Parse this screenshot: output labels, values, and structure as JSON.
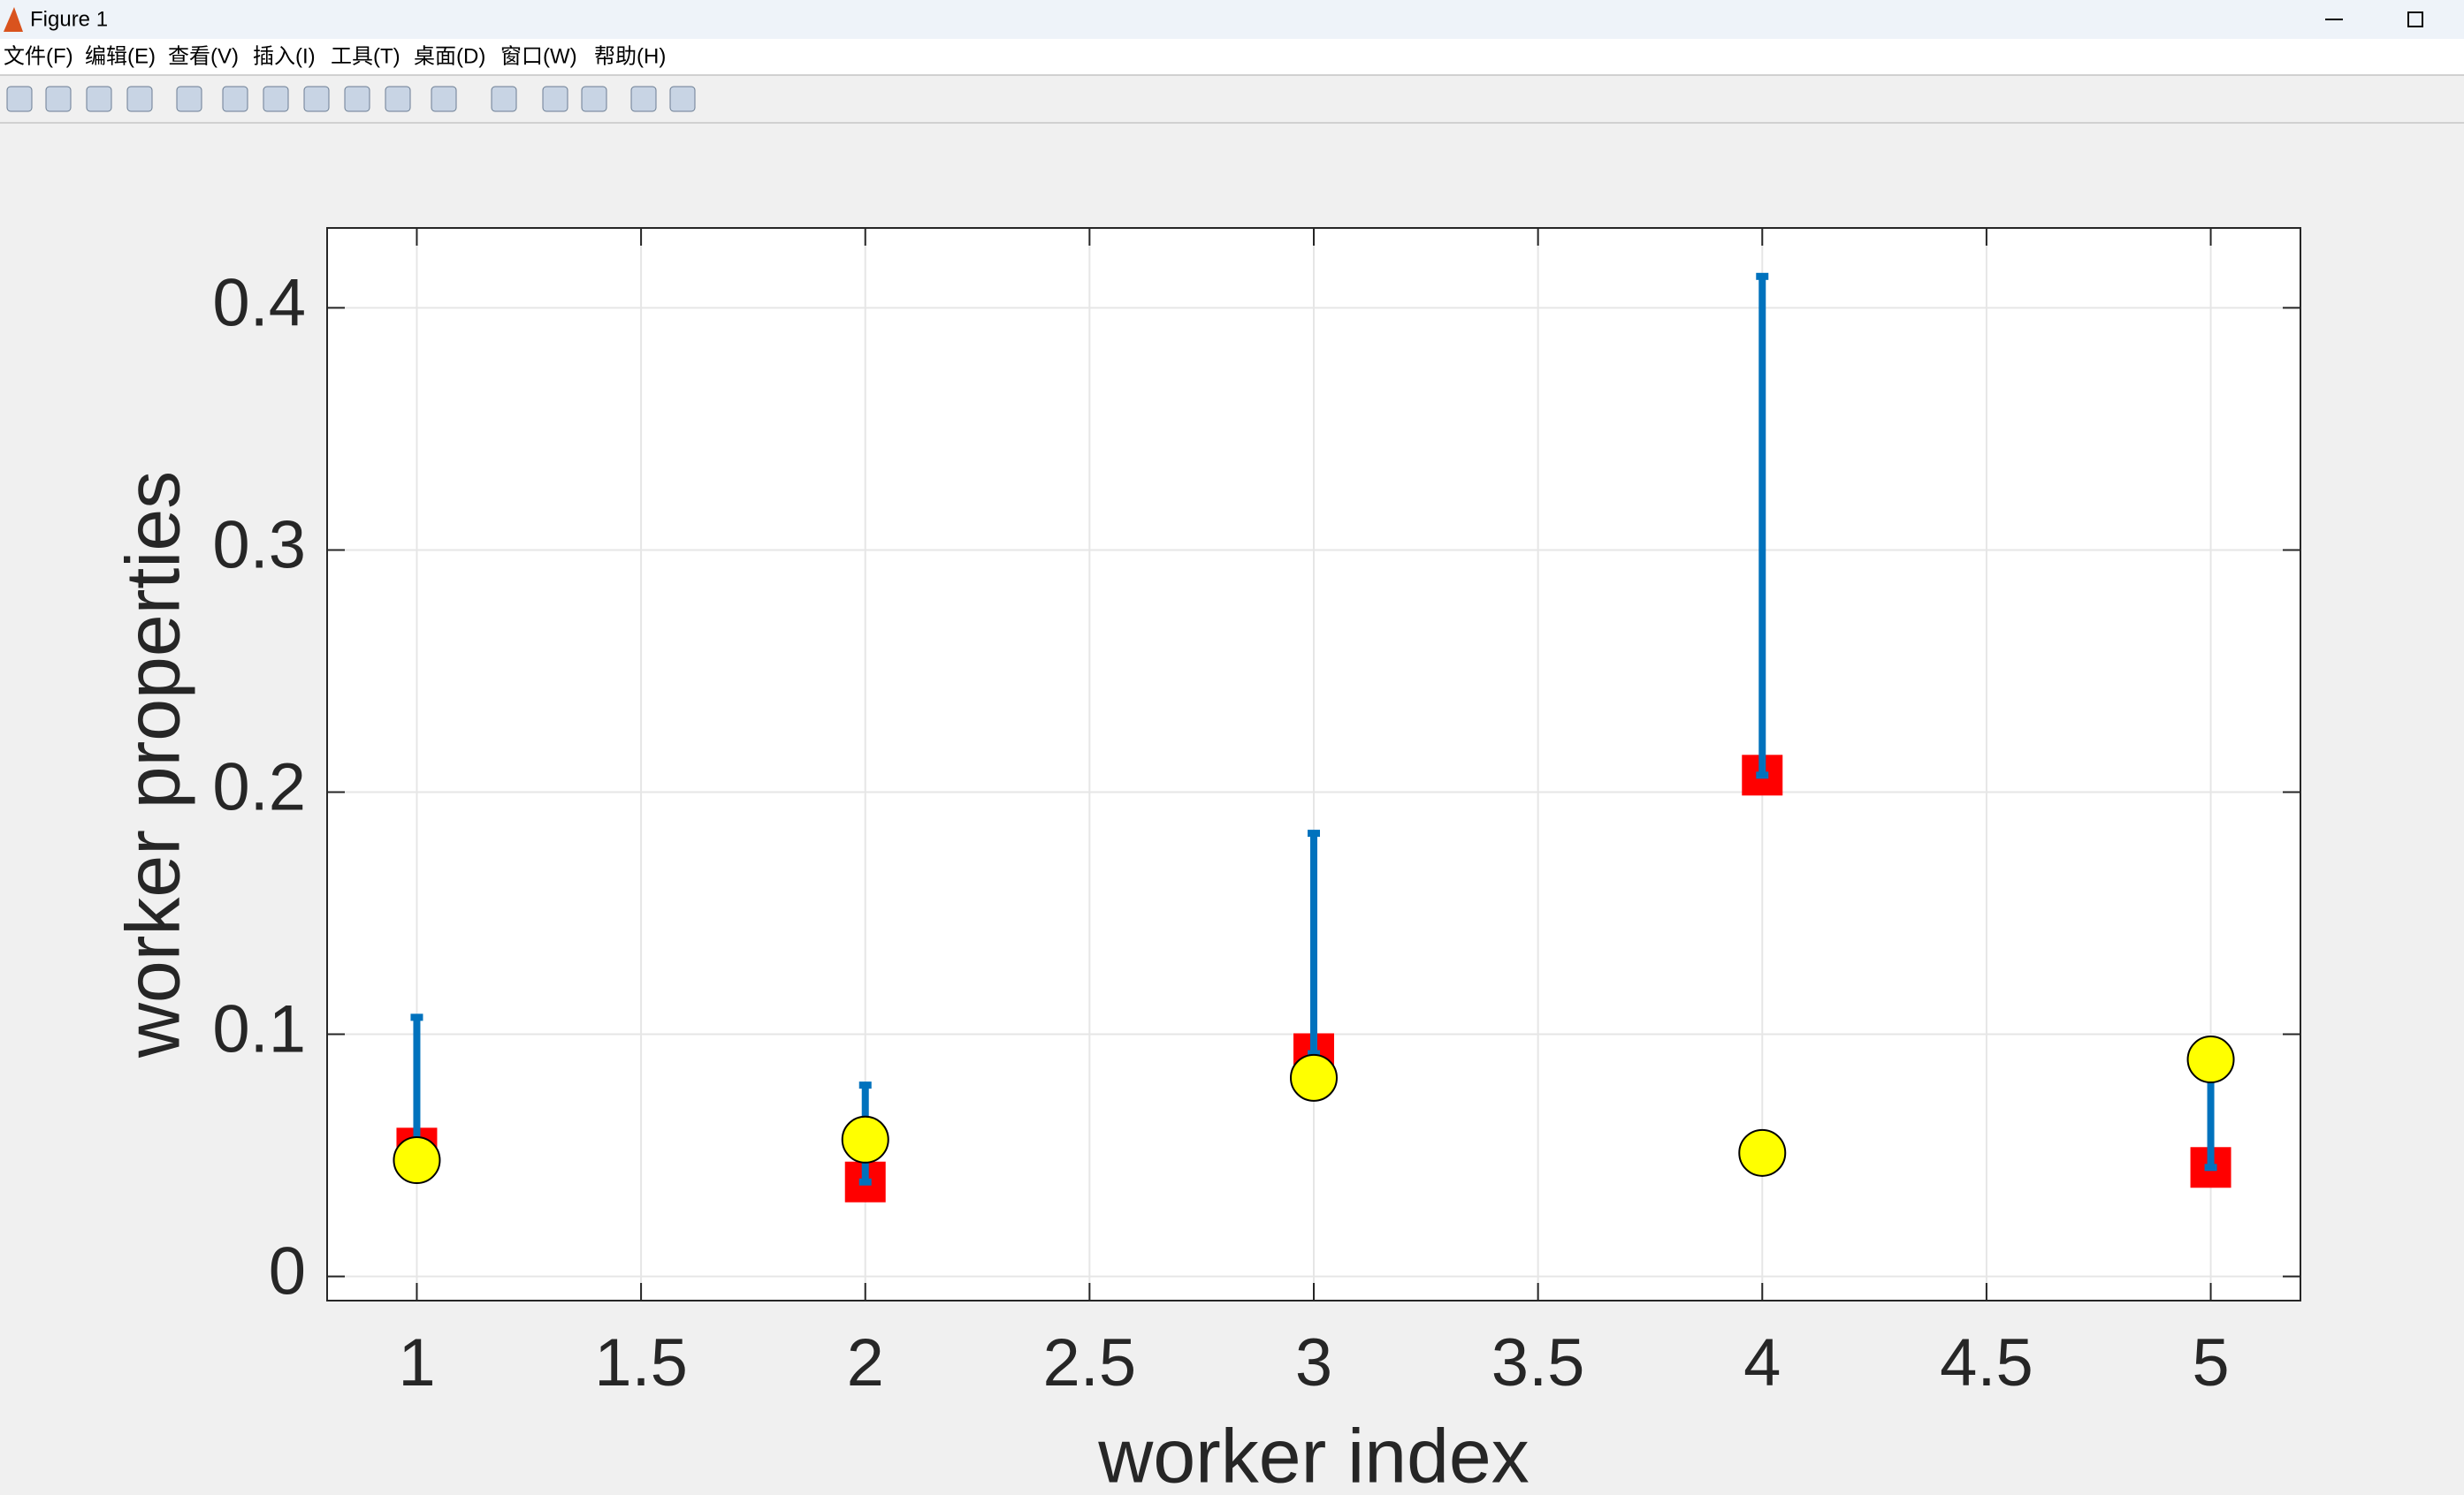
{
  "window": {
    "title": "Figure 1",
    "menu": [
      "文件(F)",
      "编辑(E)",
      "查看(V)",
      "插入(I)",
      "工具(T)",
      "桌面(D)",
      "窗口(W)",
      "帮助(H)"
    ]
  },
  "chart_data": {
    "type": "errorbar",
    "xlabel": "worker index",
    "ylabel": "worker properties",
    "x": [
      1,
      2,
      3,
      4,
      5
    ],
    "series": [
      {
        "marker": "square",
        "color": "#ff0000",
        "error_color": "#0072bd",
        "values": [
          0.053,
          0.039,
          0.092,
          0.207,
          0.045
        ],
        "upper_errors": [
          0.054,
          0.04,
          0.091,
          0.206,
          0.044
        ]
      },
      {
        "marker": "circle",
        "color": "#ffff00",
        "values": [
          0.048,
          0.0565,
          0.082,
          0.051,
          0.0896
        ]
      }
    ],
    "xlim": [
      0.8,
      5.2
    ],
    "ylim": [
      -0.01,
      0.433
    ],
    "xticks": [
      1,
      1.5,
      2,
      2.5,
      3,
      3.5,
      4,
      4.5,
      5
    ],
    "yticks": [
      0,
      0.1,
      0.2,
      0.3,
      0.4
    ],
    "grid": true
  }
}
